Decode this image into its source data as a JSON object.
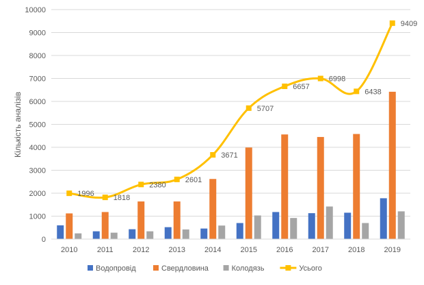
{
  "chart_data": {
    "type": "bar",
    "categories": [
      "2010",
      "2011",
      "2012",
      "2013",
      "2014",
      "2015",
      "2016",
      "2017",
      "2018",
      "2019"
    ],
    "series": [
      {
        "name": "Водопровід",
        "kind": "bar",
        "color": "#4472C4",
        "values": [
          600,
          340,
          430,
          520,
          460,
          700,
          1180,
          1130,
          1150,
          1780
        ]
      },
      {
        "name": "Свердловина",
        "kind": "bar",
        "color": "#ED7D31",
        "values": [
          1120,
          1180,
          1640,
          1640,
          2620,
          3990,
          4560,
          4450,
          4580,
          6420
        ]
      },
      {
        "name": "Колодязь",
        "kind": "bar",
        "color": "#A5A5A5",
        "values": [
          250,
          280,
          340,
          420,
          590,
          1030,
          920,
          1420,
          700,
          1210
        ]
      },
      {
        "name": "Усього",
        "kind": "line",
        "color": "#FFC000",
        "values": [
          1996,
          1818,
          2380,
          2601,
          3671,
          5707,
          6657,
          6998,
          6438,
          9409
        ],
        "labels": [
          "1996",
          "1818",
          "2380",
          "2601",
          "3671",
          "5707",
          "6657",
          "6998",
          "6438",
          "9409"
        ]
      }
    ],
    "ylabel": "Кількість аналізів",
    "xlabel": "",
    "ylim": [
      0,
      10000
    ],
    "yticks": [
      "0",
      "1000",
      "2000",
      "3000",
      "4000",
      "5000",
      "6000",
      "7000",
      "8000",
      "9000",
      "10000"
    ],
    "grid": true,
    "legend_position": "bottom"
  }
}
